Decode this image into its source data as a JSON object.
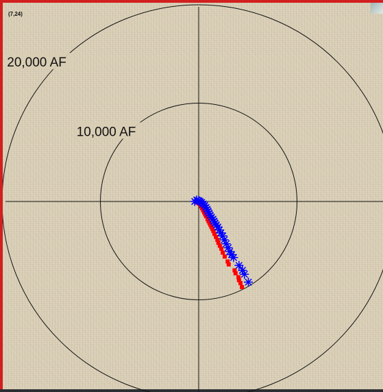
{
  "position_readout": "(7,24)",
  "chart_data": {
    "type": "scatter",
    "title": "",
    "polar": true,
    "rings": [
      {
        "radius": 10000,
        "label": "10,000 AF"
      },
      {
        "radius": 20000,
        "label": "20,000 AF"
      }
    ],
    "axis_range": [
      -20200,
      20200
    ],
    "grid": true,
    "legend": "none",
    "series": [
      {
        "marker": "square",
        "color": "#ff0000",
        "points": [
          [
            -300,
            0
          ],
          [
            -150,
            -100
          ],
          [
            0,
            -200
          ],
          [
            150,
            -300
          ],
          [
            250,
            -500
          ],
          [
            350,
            -700
          ],
          [
            450,
            -900
          ],
          [
            550,
            -1100
          ],
          [
            650,
            -1300
          ],
          [
            750,
            -1500
          ],
          [
            900,
            -1800
          ],
          [
            1000,
            -2000
          ],
          [
            1100,
            -2200
          ],
          [
            1200,
            -2400
          ],
          [
            1300,
            -2600
          ],
          [
            1400,
            -2800
          ],
          [
            1500,
            -3000
          ],
          [
            1600,
            -3300
          ],
          [
            1750,
            -3600
          ],
          [
            1900,
            -3900
          ],
          [
            2000,
            -4200
          ],
          [
            2150,
            -4500
          ],
          [
            2300,
            -4800
          ],
          [
            2450,
            -5200
          ],
          [
            2650,
            -5600
          ],
          [
            2950,
            -6100
          ],
          [
            3050,
            -6400
          ],
          [
            3650,
            -7000
          ],
          [
            3750,
            -7300
          ],
          [
            4050,
            -7700
          ],
          [
            4100,
            -8000
          ],
          [
            4250,
            -8300
          ],
          [
            4400,
            -8700
          ]
        ]
      },
      {
        "marker": "asterisk",
        "color": "#0000ff",
        "points": [
          [
            -400,
            0
          ],
          [
            -200,
            150
          ],
          [
            0,
            100
          ],
          [
            150,
            0
          ],
          [
            300,
            -100
          ],
          [
            450,
            -250
          ],
          [
            600,
            -400
          ],
          [
            750,
            -600
          ],
          [
            850,
            -800
          ],
          [
            950,
            -1000
          ],
          [
            1050,
            -1200
          ],
          [
            1150,
            -1400
          ],
          [
            1300,
            -1600
          ],
          [
            1450,
            -1800
          ],
          [
            1550,
            -2000
          ],
          [
            1650,
            -2200
          ],
          [
            1800,
            -2400
          ],
          [
            1950,
            -2600
          ],
          [
            2100,
            -2900
          ],
          [
            2250,
            -3200
          ],
          [
            2450,
            -3500
          ],
          [
            2600,
            -3900
          ],
          [
            2800,
            -4300
          ],
          [
            3000,
            -4700
          ],
          [
            3150,
            -5100
          ],
          [
            3350,
            -5400
          ],
          [
            3550,
            -5700
          ],
          [
            4100,
            -6500
          ],
          [
            4450,
            -7000
          ],
          [
            4650,
            -7400
          ],
          [
            5050,
            -8200
          ]
        ]
      }
    ]
  }
}
